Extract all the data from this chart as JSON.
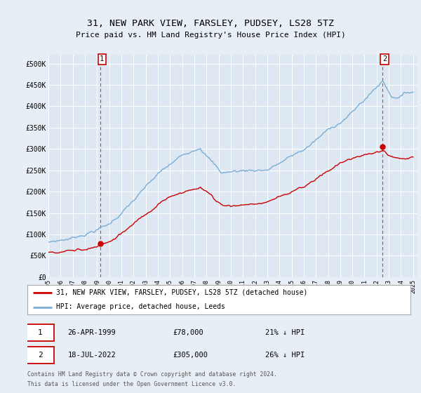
{
  "title": "31, NEW PARK VIEW, FARSLEY, PUDSEY, LS28 5TZ",
  "subtitle": "Price paid vs. HM Land Registry's House Price Index (HPI)",
  "bg_color": "#e8eef5",
  "plot_bg_color": "#dde8f3",
  "grid_color": "#ffffff",
  "ylim": [
    0,
    520000
  ],
  "yticks": [
    0,
    50000,
    100000,
    150000,
    200000,
    250000,
    300000,
    350000,
    400000,
    450000,
    500000
  ],
  "ytick_labels": [
    "£0",
    "£50K",
    "£100K",
    "£150K",
    "£200K",
    "£250K",
    "£300K",
    "£350K",
    "£400K",
    "£450K",
    "£500K"
  ],
  "legend_label_red": "31, NEW PARK VIEW, FARSLEY, PUDSEY, LS28 5TZ (detached house)",
  "legend_label_blue": "HPI: Average price, detached house, Leeds",
  "marker1_date": "26-APR-1999",
  "marker1_price": "78,000",
  "marker1_pct": "21% ↓ HPI",
  "marker2_date": "18-JUL-2022",
  "marker2_price": "305,000",
  "marker2_pct": "26% ↓ HPI",
  "footnote1": "Contains HM Land Registry data © Crown copyright and database right 2024.",
  "footnote2": "This data is licensed under the Open Government Licence v3.0.",
  "red_color": "#cc0000",
  "blue_color": "#7aadd4",
  "dot_color": "#cc0000"
}
